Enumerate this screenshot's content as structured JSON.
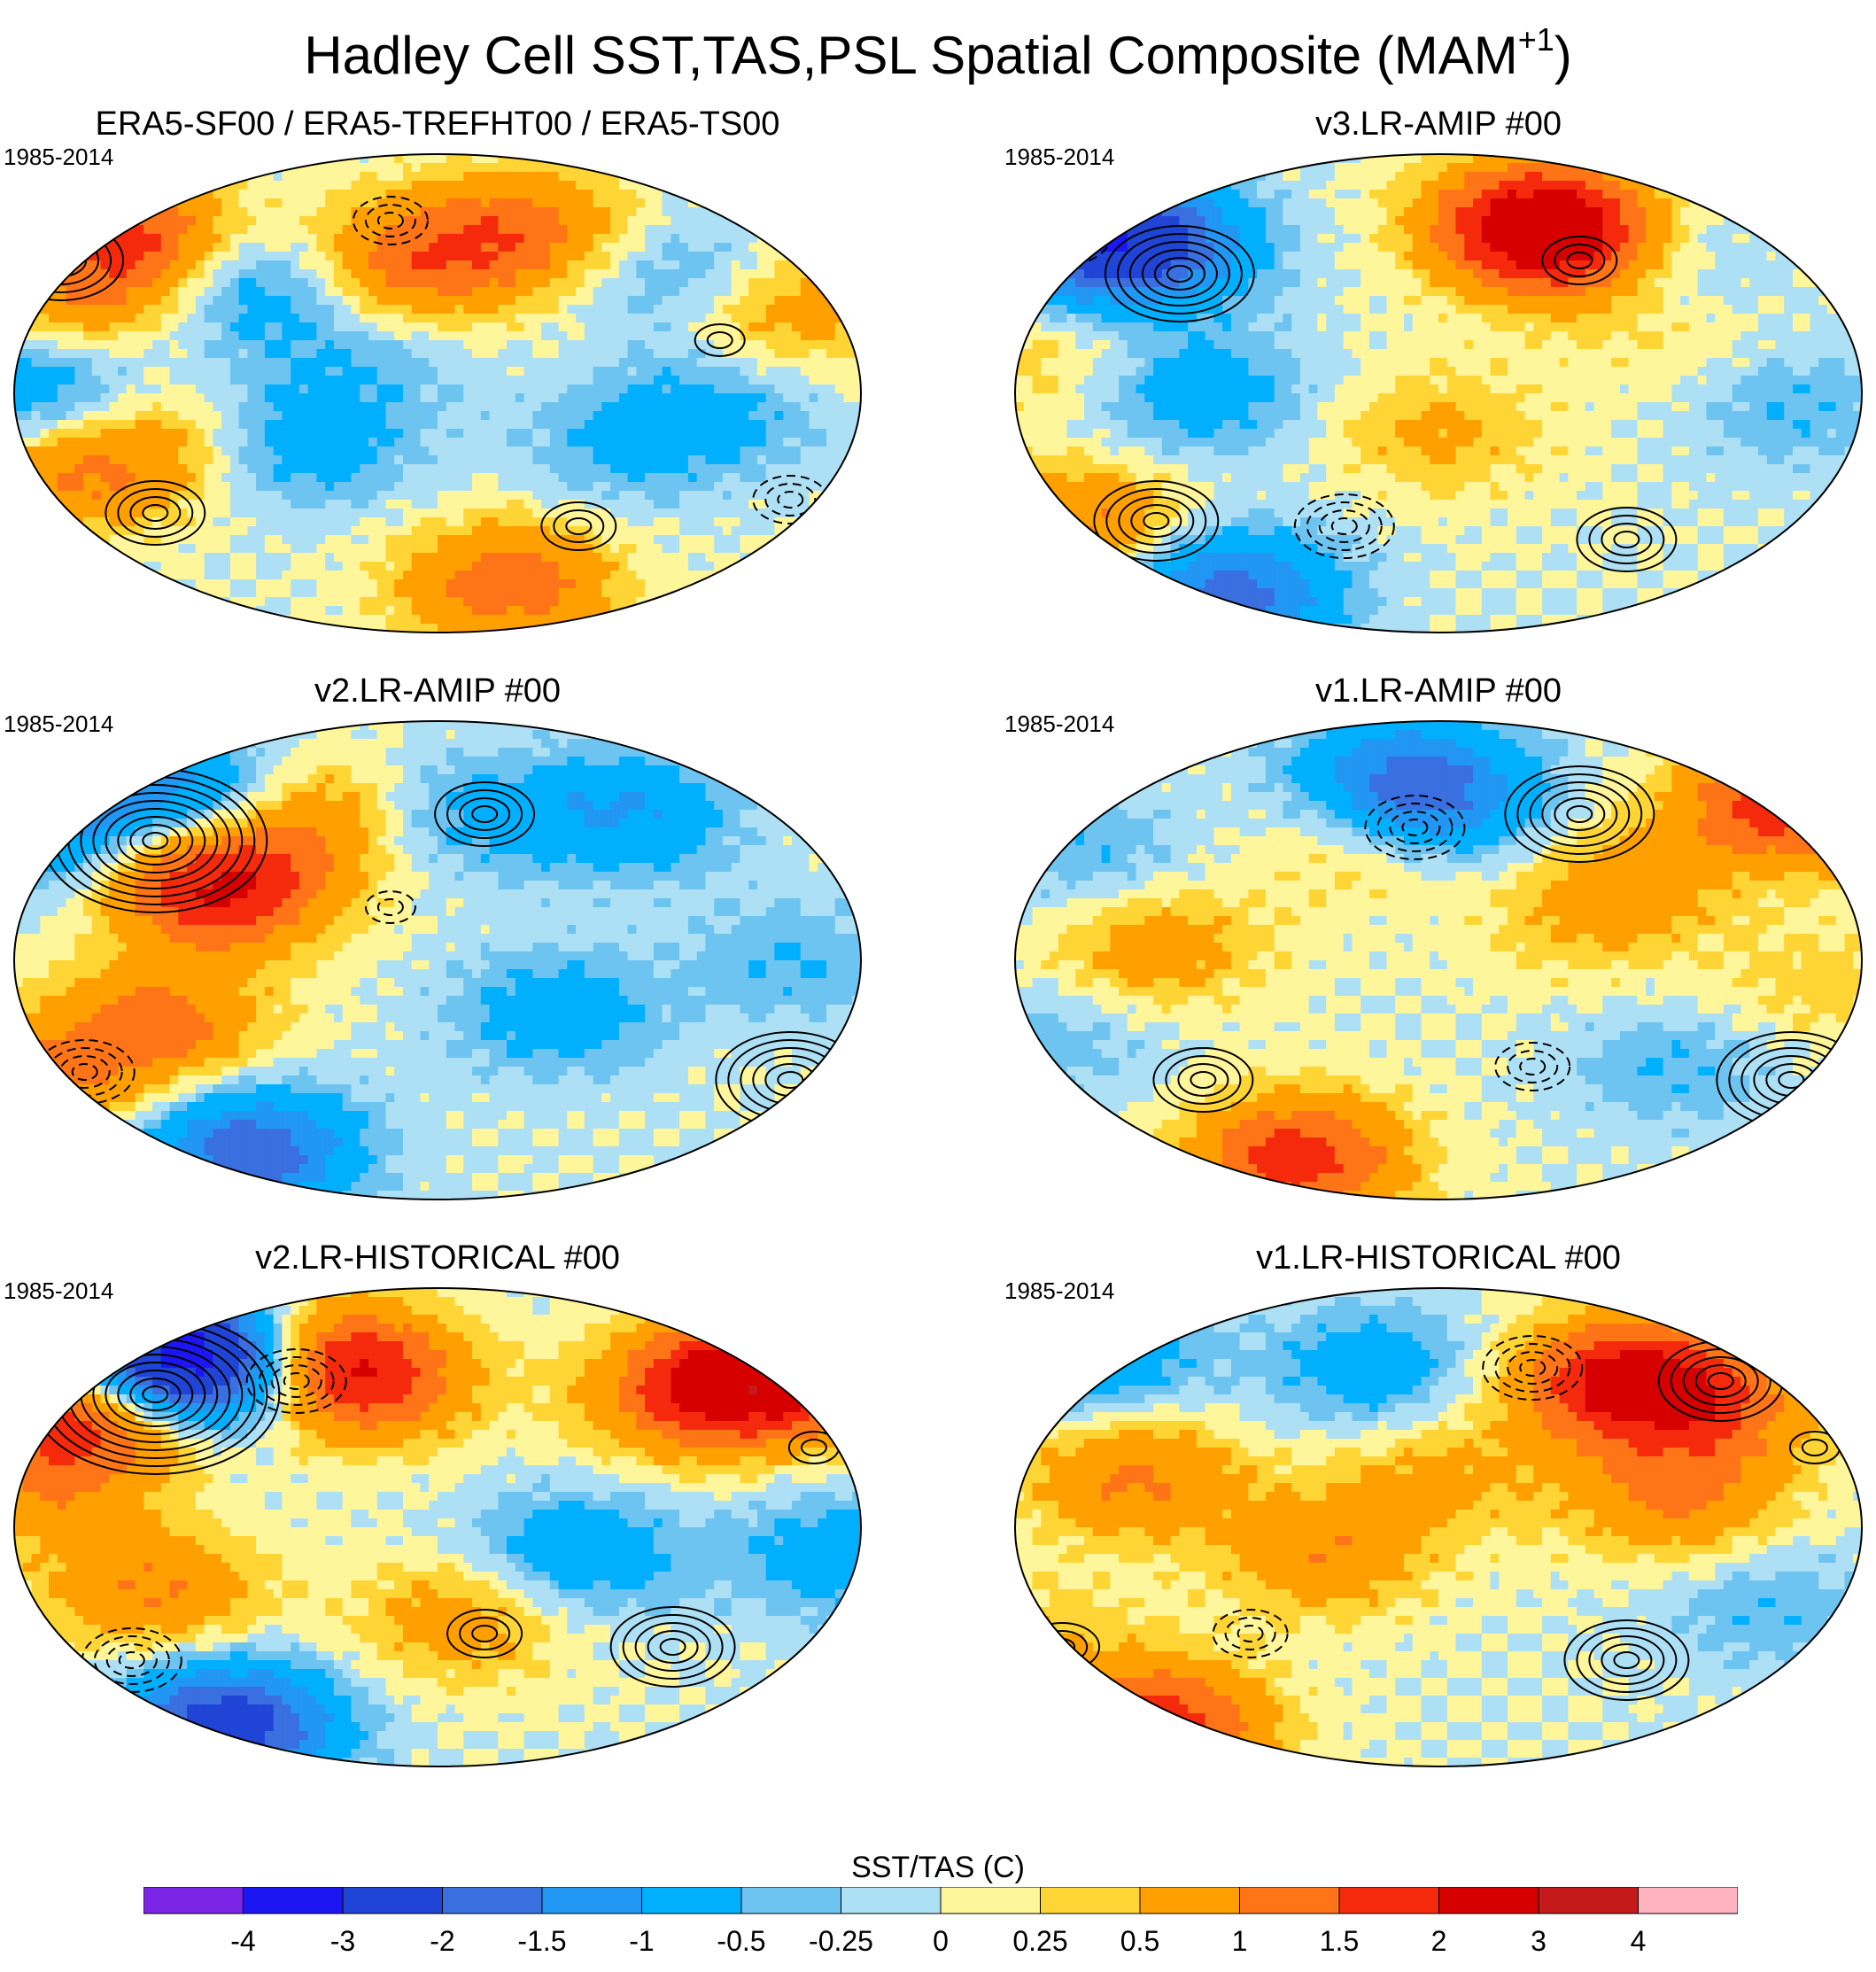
{
  "title": {
    "main": "Hadley Cell SST,TAS,PSL Spatial Composite (MAM",
    "superscript": "+1",
    "close": ")"
  },
  "chart_data": {
    "type": "heatmap",
    "projection": "global robinson-style map",
    "overlay": "PSL contours (solid positive, dashed negative)",
    "panels": [
      {
        "title": "ERA5-SF00 / ERA5-TREFHT00 / ERA5-TS00",
        "period": "1985-2014",
        "blobs": [
          {
            "lon": -10,
            "lat": 50,
            "v": 1.3
          },
          {
            "lon": 40,
            "lat": 62,
            "v": 1.1
          },
          {
            "lon": 100,
            "lat": 45,
            "v": -0.6
          },
          {
            "lon": 150,
            "lat": 30,
            "v": 0.8
          },
          {
            "lon": -150,
            "lat": 35,
            "v": 0.7
          },
          {
            "lon": -130,
            "lat": 58,
            "v": 1.6
          },
          {
            "lon": -170,
            "lat": 0,
            "v": -1.0
          },
          {
            "lon": -120,
            "lat": -20,
            "v": 0.7
          },
          {
            "lon": -160,
            "lat": -30,
            "v": 0.9
          },
          {
            "lon": 80,
            "lat": -20,
            "v": -0.5
          },
          {
            "lon": 30,
            "lat": -72,
            "v": 1.3
          },
          {
            "lon": -60,
            "lat": -20,
            "v": -0.8
          },
          {
            "lon": -80,
            "lat": 40,
            "v": -0.9
          },
          {
            "lon": 120,
            "lat": -5,
            "v": -0.6
          },
          {
            "lon": -30,
            "lat": 10,
            "v": -0.4
          }
        ],
        "contours": [
          {
            "lon": -160,
            "lat": 50,
            "amp": 5
          },
          {
            "lon": -20,
            "lat": 65,
            "amp": -3
          },
          {
            "lon": -120,
            "lat": -45,
            "amp": 4
          },
          {
            "lon": 60,
            "lat": -50,
            "amp": 3
          },
          {
            "lon": 150,
            "lat": -40,
            "amp": -3
          },
          {
            "lon": 120,
            "lat": 20,
            "amp": 2
          }
        ]
      },
      {
        "title": "v3.LR-AMIP  #00",
        "period": "1985-2014",
        "blobs": [
          {
            "lon": -150,
            "lat": 60,
            "v": -2.2
          },
          {
            "lon": -120,
            "lat": 55,
            "v": -1.3
          },
          {
            "lon": 40,
            "lat": 65,
            "v": 1.9
          },
          {
            "lon": 60,
            "lat": 55,
            "v": 1.5
          },
          {
            "lon": -170,
            "lat": 15,
            "v": 0.4
          },
          {
            "lon": -100,
            "lat": 0,
            "v": -0.8
          },
          {
            "lon": -150,
            "lat": -50,
            "v": 1.1
          },
          {
            "lon": 0,
            "lat": -15,
            "v": 0.6
          },
          {
            "lon": 90,
            "lat": 50,
            "v": -0.7
          },
          {
            "lon": -90,
            "lat": -75,
            "v": -1.8
          },
          {
            "lon": 150,
            "lat": -5,
            "v": -0.5
          },
          {
            "lon": 100,
            "lat": 20,
            "v": 0.3
          }
        ],
        "contours": [
          {
            "lon": -110,
            "lat": 45,
            "amp": 6
          },
          {
            "lon": -160,
            "lat": 60,
            "amp": -4
          },
          {
            "lon": -120,
            "lat": -48,
            "amp": 5
          },
          {
            "lon": -40,
            "lat": -50,
            "amp": -4
          },
          {
            "lon": 80,
            "lat": -55,
            "amp": 4
          },
          {
            "lon": 60,
            "lat": 50,
            "amp": 3
          }
        ]
      },
      {
        "title": "v2.LR-AMIP  #00",
        "period": "1985-2014",
        "blobs": [
          {
            "lon": -160,
            "lat": 50,
            "v": -1.3
          },
          {
            "lon": -100,
            "lat": 60,
            "v": -1.6
          },
          {
            "lon": -110,
            "lat": 40,
            "v": 1.0
          },
          {
            "lon": -90,
            "lat": 25,
            "v": 1.6
          },
          {
            "lon": -60,
            "lat": 55,
            "v": 1.2
          },
          {
            "lon": -120,
            "lat": -25,
            "v": 1.2
          },
          {
            "lon": -170,
            "lat": -45,
            "v": 0.9
          },
          {
            "lon": 80,
            "lat": 55,
            "v": -1.0
          },
          {
            "lon": 10,
            "lat": 55,
            "v": -0.6
          },
          {
            "lon": -80,
            "lat": -72,
            "v": -1.9
          },
          {
            "lon": 50,
            "lat": -20,
            "v": -0.8
          },
          {
            "lon": 150,
            "lat": 0,
            "v": -0.5
          }
        ],
        "contours": [
          {
            "lon": -120,
            "lat": 45,
            "amp": 9
          },
          {
            "lon": 20,
            "lat": 55,
            "amp": 4
          },
          {
            "lon": 150,
            "lat": -45,
            "amp": 6
          },
          {
            "lon": -150,
            "lat": -42,
            "amp": -4
          },
          {
            "lon": -20,
            "lat": 20,
            "amp": -2
          }
        ]
      },
      {
        "title": "v1.LR-AMIP  #00",
        "period": "1985-2014",
        "blobs": [
          {
            "lon": 150,
            "lat": 60,
            "v": 1.9
          },
          {
            "lon": 80,
            "lat": 30,
            "v": 0.7
          },
          {
            "lon": -120,
            "lat": 5,
            "v": 0.8
          },
          {
            "lon": -30,
            "lat": 45,
            "v": 0.6
          },
          {
            "lon": 0,
            "lat": 60,
            "v": -1.3
          },
          {
            "lon": -20,
            "lat": 70,
            "v": -1.0
          },
          {
            "lon": -60,
            "lat": -75,
            "v": 1.8
          },
          {
            "lon": -160,
            "lat": -30,
            "v": -0.4
          },
          {
            "lon": 160,
            "lat": -10,
            "v": 0.4
          },
          {
            "lon": 100,
            "lat": -40,
            "v": -0.5
          },
          {
            "lon": -150,
            "lat": 40,
            "v": -0.5
          },
          {
            "lon": 60,
            "lat": 10,
            "v": 0.3
          }
        ],
        "contours": [
          {
            "lon": 60,
            "lat": 55,
            "amp": 6
          },
          {
            "lon": -10,
            "lat": 50,
            "amp": -4
          },
          {
            "lon": 150,
            "lat": -45,
            "amp": 6
          },
          {
            "lon": -100,
            "lat": -45,
            "amp": 4
          },
          {
            "lon": 40,
            "lat": -40,
            "amp": -3
          }
        ]
      },
      {
        "title": "v2.LR-HISTORICAL  #00",
        "period": "1985-2014",
        "blobs": [
          {
            "lon": 150,
            "lat": 60,
            "v": 2.2
          },
          {
            "lon": 110,
            "lat": 50,
            "v": 1.6
          },
          {
            "lon": -150,
            "lat": 40,
            "v": 1.9
          },
          {
            "lon": -110,
            "lat": 65,
            "v": -2.6
          },
          {
            "lon": -90,
            "lat": 62,
            "v": -2.0
          },
          {
            "lon": -60,
            "lat": 65,
            "v": 1.8
          },
          {
            "lon": -30,
            "lat": 55,
            "v": 1.4
          },
          {
            "lon": -90,
            "lat": -75,
            "v": -2.5
          },
          {
            "lon": -120,
            "lat": -25,
            "v": 1.0
          },
          {
            "lon": 10,
            "lat": -35,
            "v": 0.8
          },
          {
            "lon": -170,
            "lat": 10,
            "v": 0.6
          },
          {
            "lon": 60,
            "lat": -10,
            "v": -0.9
          },
          {
            "lon": 170,
            "lat": -10,
            "v": -0.8
          }
        ],
        "contours": [
          {
            "lon": -120,
            "lat": 50,
            "amp": 10
          },
          {
            "lon": -60,
            "lat": 55,
            "amp": -4
          },
          {
            "lon": 100,
            "lat": -45,
            "amp": 5
          },
          {
            "lon": -130,
            "lat": -50,
            "amp": -4
          },
          {
            "lon": 20,
            "lat": -40,
            "amp": 3
          },
          {
            "lon": 160,
            "lat": 30,
            "amp": 2
          }
        ]
      },
      {
        "title": "v1.LR-HISTORICAL  #00",
        "period": "1985-2014",
        "blobs": [
          {
            "lon": 80,
            "lat": 55,
            "v": 2.2
          },
          {
            "lon": 120,
            "lat": 45,
            "v": 1.0
          },
          {
            "lon": -130,
            "lat": 20,
            "v": 1.1
          },
          {
            "lon": 100,
            "lat": 10,
            "v": 1.0
          },
          {
            "lon": -50,
            "lat": -10,
            "v": 0.9
          },
          {
            "lon": -120,
            "lat": -75,
            "v": 1.9
          },
          {
            "lon": -150,
            "lat": 65,
            "v": -1.1
          },
          {
            "lon": -30,
            "lat": 60,
            "v": -0.8
          },
          {
            "lon": 0,
            "lat": 20,
            "v": 0.6
          },
          {
            "lon": 140,
            "lat": -30,
            "v": -0.5
          },
          {
            "lon": -170,
            "lat": -40,
            "v": 0.4
          }
        ],
        "contours": [
          {
            "lon": 120,
            "lat": 55,
            "amp": 5
          },
          {
            "lon": 40,
            "lat": 60,
            "amp": -4
          },
          {
            "lon": 80,
            "lat": -50,
            "amp": 5
          },
          {
            "lon": -80,
            "lat": -40,
            "amp": -3
          },
          {
            "lon": -160,
            "lat": -45,
            "amp": 3
          },
          {
            "lon": 160,
            "lat": 30,
            "amp": 2
          }
        ]
      }
    ],
    "colorbar": {
      "label": "SST/TAS (C)",
      "ticks": [
        "-4",
        "-3",
        "-2",
        "-1.5",
        "-1",
        "-0.5",
        "-0.25",
        "0",
        "0.25",
        "0.5",
        "1",
        "1.5",
        "2",
        "3",
        "4"
      ],
      "colors": [
        "#7b26e6",
        "#1c17f2",
        "#1f44d6",
        "#3a6fe0",
        "#2196f3",
        "#00b0ff",
        "#6ec4f0",
        "#aee0f5",
        "#fff59a",
        "#ffd535",
        "#ffa000",
        "#ff7417",
        "#f52a0d",
        "#d60000",
        "#c41a1a",
        "#ffb3bf"
      ]
    }
  }
}
